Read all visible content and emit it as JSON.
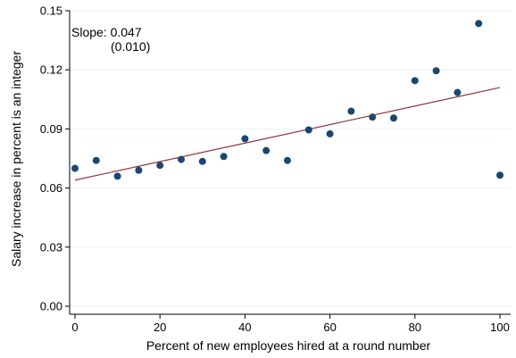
{
  "chart_data": {
    "type": "scatter",
    "x": [
      0,
      5,
      10,
      15,
      20,
      25,
      30,
      35,
      40,
      45,
      50,
      55,
      60,
      65,
      70,
      75,
      80,
      85,
      90,
      95,
      100
    ],
    "y": [
      0.07,
      0.074,
      0.066,
      0.069,
      0.0715,
      0.0745,
      0.0735,
      0.076,
      0.085,
      0.079,
      0.074,
      0.0895,
      0.0875,
      0.099,
      0.096,
      0.0955,
      0.1145,
      0.1195,
      0.1085,
      0.1435,
      0.0665
    ],
    "fit_line": {
      "x": [
        0,
        100
      ],
      "y": [
        0.064,
        0.111
      ]
    },
    "xlabel": "Percent of new employees hired at a round number",
    "ylabel": "Salary increase in percent is an integer",
    "xlim": [
      0,
      100
    ],
    "ylim": [
      0,
      0.15
    ],
    "x_ticks": [
      0,
      20,
      40,
      60,
      80,
      100
    ],
    "x_tick_labels": [
      "0",
      "20",
      "40",
      "60",
      "80",
      "100"
    ],
    "y_ticks": [
      0,
      0.03,
      0.06,
      0.09,
      0.12,
      0.15
    ],
    "y_tick_labels": [
      "0.00",
      "0.03",
      "0.06",
      "0.09",
      "0.12",
      "0.15"
    ],
    "annotation": {
      "line1": "Slope: 0.047",
      "line2": "(0.010)"
    },
    "grid": "horizontal",
    "colors": {
      "marker": "#1a476f",
      "fit_line": "#90353b",
      "grid": "#eaf2f3",
      "axis": "#000000"
    }
  }
}
